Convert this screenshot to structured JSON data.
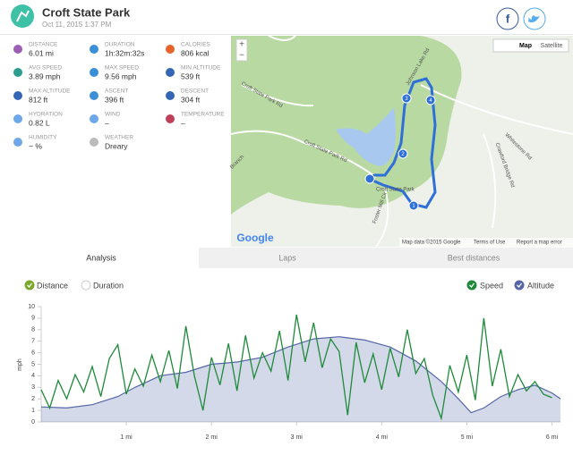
{
  "header": {
    "title": "Croft State Park",
    "date": "Oct 11, 2015 1:37 PM"
  },
  "stats": [
    {
      "label": "DISTANCE",
      "value": "6.01 mi"
    },
    {
      "label": "DURATION",
      "value": "1h:32m:32s"
    },
    {
      "label": "CALORIES",
      "value": "806 kcal"
    },
    {
      "label": "AVG SPEED",
      "value": "3.89 mph"
    },
    {
      "label": "MAX SPEED",
      "value": "9.56 mph"
    },
    {
      "label": "MIN ALTITUDE",
      "value": "539 ft"
    },
    {
      "label": "MAX ALTITUDE",
      "value": "812 ft"
    },
    {
      "label": "ASCENT",
      "value": "396 ft"
    },
    {
      "label": "DESCENT",
      "value": "304 ft"
    },
    {
      "label": "HYDRATION",
      "value": "0.82 L"
    },
    {
      "label": "WIND",
      "value": "–"
    },
    {
      "label": "TEMPERATURE",
      "value": "–"
    },
    {
      "label": "HUMIDITY",
      "value": "~ %"
    },
    {
      "label": "WEATHER",
      "value": "Dreary"
    }
  ],
  "map": {
    "zoom": [
      "+",
      "−"
    ],
    "buttons": [
      "Map",
      "Satellite"
    ],
    "roads": [
      "Croft State Park Rd",
      "Johnson Lake Rd",
      "Croft State Park Rd",
      "Whitestone Rd",
      "Crawford Bridge Rd",
      "Foster Mill Cir",
      "Croft State Park",
      "Branch"
    ],
    "markers": [
      "1",
      "2",
      "3",
      "4"
    ],
    "brand": "Google",
    "footer": [
      "Map data ©2015 Google",
      "Terms of Use",
      "Report a map error"
    ]
  },
  "tabs": [
    "Analysis",
    "Laps",
    "Best distances"
  ],
  "x_modes": [
    "Distance",
    "Duration"
  ],
  "chart_data": {
    "type": "line",
    "y_label": "mph",
    "xlim": [
      0,
      6.1
    ],
    "xticks": [
      {
        "value": 1,
        "label": "1 mi"
      },
      {
        "value": 2,
        "label": "2 mi"
      },
      {
        "value": 3,
        "label": "3 mi"
      },
      {
        "value": 4,
        "label": "4 mi"
      },
      {
        "value": 5,
        "label": "5 mi"
      },
      {
        "value": 6,
        "label": "6 mi"
      }
    ],
    "ylim": [
      0,
      10
    ],
    "yticks": [
      0,
      1,
      2,
      3,
      4,
      5,
      6,
      7,
      8,
      9,
      10
    ],
    "y2lim": [
      506,
      920
    ],
    "series": [
      {
        "name": "Speed",
        "color": "#1e8a3a",
        "x": [
          0,
          0.1,
          0.2,
          0.3,
          0.4,
          0.5,
          0.6,
          0.7,
          0.8,
          0.9,
          1.0,
          1.1,
          1.2,
          1.3,
          1.4,
          1.5,
          1.6,
          1.7,
          1.8,
          1.9,
          2.0,
          2.1,
          2.2,
          2.3,
          2.4,
          2.5,
          2.6,
          2.7,
          2.8,
          2.9,
          3.0,
          3.1,
          3.2,
          3.3,
          3.4,
          3.5,
          3.6,
          3.7,
          3.8,
          3.9,
          4.0,
          4.1,
          4.2,
          4.3,
          4.4,
          4.5,
          4.6,
          4.7,
          4.8,
          4.9,
          5.0,
          5.1,
          5.2,
          5.3,
          5.4,
          5.5,
          5.6,
          5.7,
          5.8,
          5.9,
          6.0
        ],
        "values": [
          2.8,
          1.2,
          3.6,
          2.0,
          4.1,
          2.6,
          4.8,
          2.2,
          5.5,
          6.7,
          2.4,
          4.6,
          3.1,
          5.8,
          3.5,
          6.2,
          2.9,
          8.3,
          4.0,
          1.0,
          5.6,
          3.2,
          6.8,
          2.7,
          7.5,
          3.8,
          6.0,
          4.4,
          7.9,
          3.6,
          9.3,
          5.2,
          8.6,
          4.7,
          7.2,
          6.1,
          0.6,
          6.9,
          3.4,
          5.9,
          2.8,
          6.4,
          3.9,
          8.0,
          4.2,
          5.5,
          2.3,
          0.3,
          4.9,
          2.6,
          5.8,
          1.9,
          9.0,
          3.1,
          6.3,
          2.2,
          4.1,
          2.7,
          3.5,
          2.4,
          2.1
        ]
      },
      {
        "name": "Altitude",
        "color": "#5566aa",
        "axis": "y2",
        "x": [
          0,
          0.3,
          0.6,
          0.9,
          1.1,
          1.4,
          1.7,
          2.0,
          2.3,
          2.6,
          2.9,
          3.2,
          3.5,
          3.8,
          4.1,
          4.4,
          4.7,
          4.9,
          5.05,
          5.2,
          5.4,
          5.6,
          5.8,
          6.0,
          6.1
        ],
        "values": [
          560,
          556,
          568,
          597,
          630,
          672,
          684,
          713,
          721,
          738,
          775,
          804,
          812,
          800,
          775,
          725,
          651,
          589,
          539,
          556,
          597,
          622,
          638,
          610,
          589
        ]
      }
    ]
  }
}
